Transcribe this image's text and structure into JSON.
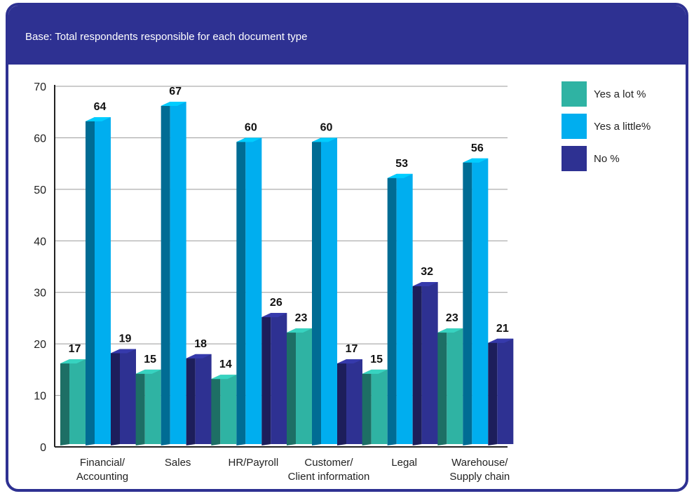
{
  "header": {
    "base_text": "Base: Total respondents responsible for each document type"
  },
  "chart_data": {
    "type": "bar",
    "title": "",
    "xlabel": "",
    "ylabel": "",
    "ylim": [
      0,
      70
    ],
    "yticks": [
      0,
      10,
      20,
      30,
      40,
      50,
      60,
      70
    ],
    "grid": true,
    "legend_position": "top-right",
    "categories": [
      [
        "Financial/",
        "Accounting"
      ],
      [
        "Sales"
      ],
      [
        "HR/Payroll"
      ],
      [
        "Customer/",
        "Client information"
      ],
      [
        "Legal"
      ],
      [
        "Warehouse/",
        "Supply chain"
      ]
    ],
    "series": [
      {
        "name": "Yes a lot %",
        "color": "#2fb3a3",
        "values": [
          17,
          15,
          14,
          23,
          15,
          23
        ]
      },
      {
        "name": "Yes a little%",
        "color": "#00aeef",
        "values": [
          64,
          67,
          60,
          60,
          53,
          56
        ]
      },
      {
        "name": "No %",
        "color": "#2e3192",
        "values": [
          19,
          18,
          26,
          17,
          32,
          21
        ]
      }
    ]
  }
}
